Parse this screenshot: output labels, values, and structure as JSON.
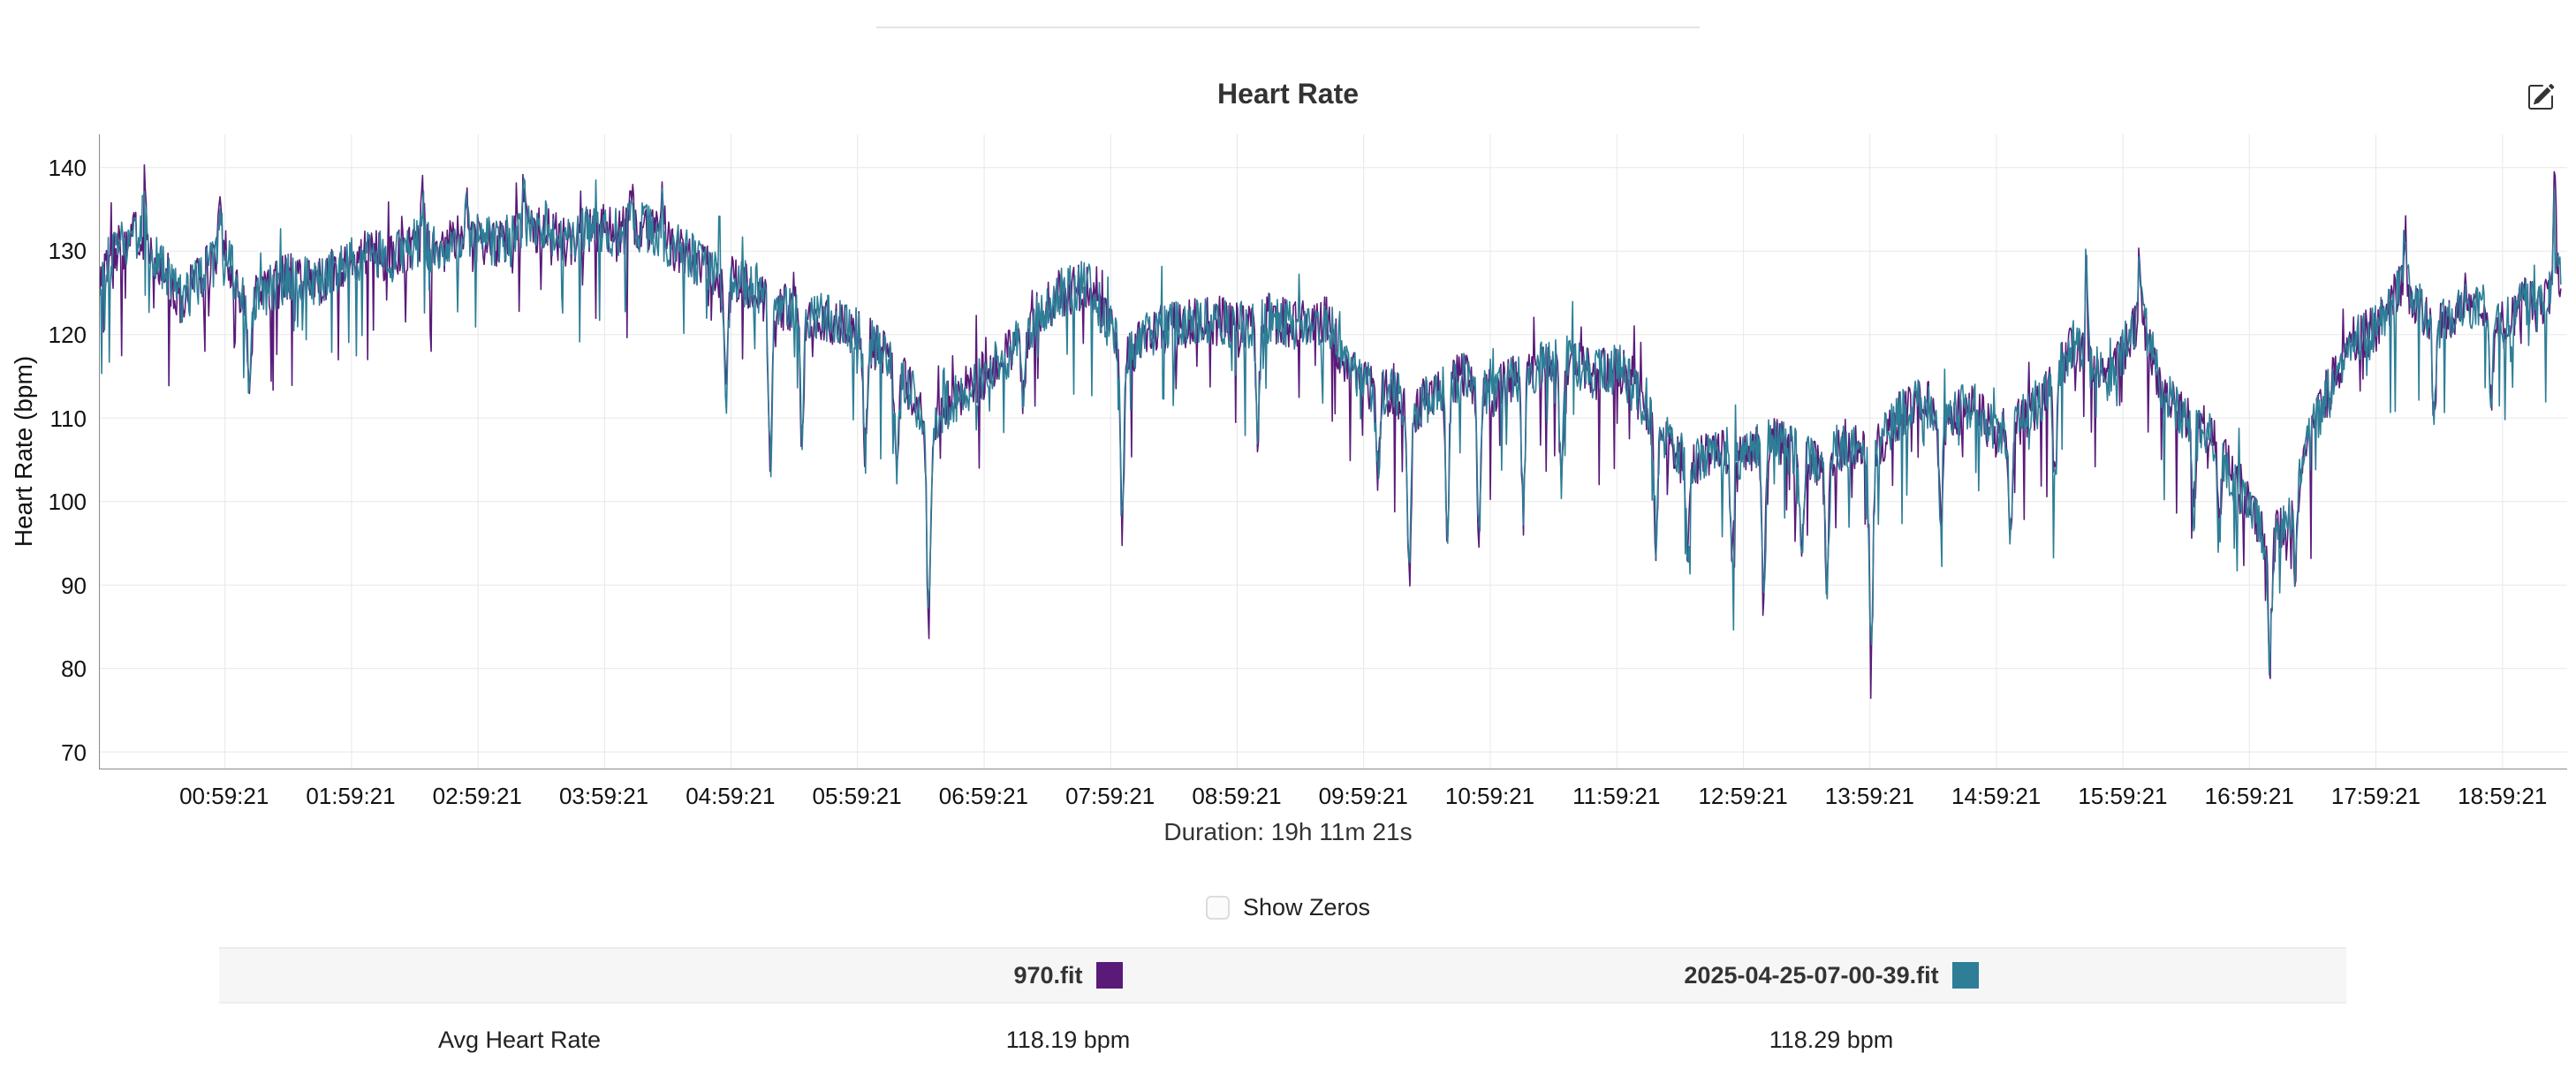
{
  "header": {
    "title": "Heart Rate"
  },
  "controls": {
    "show_zeros_label": "Show Zeros",
    "show_zeros_checked": false
  },
  "footer_table": {
    "row_label": "Avg Heart Rate",
    "columns": [
      {
        "name": "970.fit",
        "color": "#5a1a78",
        "avg": "118.19 bpm"
      },
      {
        "name": "2025-04-25-07-00-39.fit",
        "color": "#2d7e96",
        "avg": "118.29 bpm"
      }
    ]
  },
  "chart_data": {
    "type": "line",
    "title": "Heart Rate",
    "ylabel": "Heart Rate (bpm)",
    "xlabel_caption": "Duration: 19h 11m 21s",
    "ylim": [
      68,
      144
    ],
    "yticks": [
      70,
      80,
      90,
      100,
      110,
      120,
      130,
      140
    ],
    "xtick_labels": [
      "00:59:21",
      "01:59:21",
      "02:59:21",
      "03:59:21",
      "04:59:21",
      "05:59:21",
      "06:59:21",
      "07:59:21",
      "08:59:21",
      "09:59:21",
      "10:59:21",
      "11:59:21",
      "12:59:21",
      "13:59:21",
      "14:59:21",
      "15:59:21",
      "16:59:21",
      "17:59:21",
      "18:59:21"
    ],
    "first_tick_hour": 0.989,
    "hours_span": 19.5,
    "draw_end_hour": 19.45,
    "grid": true,
    "legend_position": "bottom-table",
    "noise_band_bpm": 3,
    "series": [
      {
        "name": "970.fit",
        "color": "#5a1a78",
        "avg_bpm": 118.19
      },
      {
        "name": "2025-04-25-07-00-39.fit",
        "color": "#2d7e96",
        "avg_bpm": 118.29
      }
    ],
    "trend_anchors_hour_bpm": [
      [
        0,
        126
      ],
      [
        0.1,
        130
      ],
      [
        0.3,
        132
      ],
      [
        0.5,
        128
      ],
      [
        0.65,
        124
      ],
      [
        0.8,
        127
      ],
      [
        1,
        130
      ],
      [
        1.15,
        123
      ],
      [
        1.3,
        125
      ],
      [
        1.5,
        127
      ],
      [
        1.7,
        126
      ],
      [
        1.9,
        128
      ],
      [
        2.1,
        130
      ],
      [
        2.3,
        129
      ],
      [
        2.5,
        131
      ],
      [
        2.7,
        130
      ],
      [
        2.9,
        132
      ],
      [
        3.1,
        131
      ],
      [
        3.3,
        132
      ],
      [
        3.5,
        133
      ],
      [
        3.7,
        131
      ],
      [
        3.9,
        133
      ],
      [
        4.1,
        132
      ],
      [
        4.3,
        133
      ],
      [
        4.5,
        131
      ],
      [
        4.7,
        129
      ],
      [
        4.9,
        127
      ],
      [
        5.1,
        126
      ],
      [
        5.3,
        124
      ],
      [
        5.5,
        123
      ],
      [
        5.7,
        122
      ],
      [
        5.9,
        121
      ],
      [
        6.1,
        119
      ],
      [
        6.3,
        116
      ],
      [
        6.45,
        112
      ],
      [
        6.55,
        108
      ],
      [
        6.65,
        111
      ],
      [
        6.8,
        113
      ],
      [
        7,
        115
      ],
      [
        7.2,
        118
      ],
      [
        7.4,
        122
      ],
      [
        7.6,
        125
      ],
      [
        7.8,
        126
      ],
      [
        7.95,
        122
      ],
      [
        8.1,
        117
      ],
      [
        8.25,
        120
      ],
      [
        8.5,
        121
      ],
      [
        8.75,
        122
      ],
      [
        9,
        121
      ],
      [
        9.25,
        122
      ],
      [
        9.5,
        121
      ],
      [
        9.7,
        122
      ],
      [
        9.85,
        116
      ],
      [
        10,
        114
      ],
      [
        10.2,
        113
      ],
      [
        10.4,
        111
      ],
      [
        10.6,
        114
      ],
      [
        10.8,
        115
      ],
      [
        11,
        113
      ],
      [
        11.2,
        115
      ],
      [
        11.4,
        116
      ],
      [
        11.6,
        117
      ],
      [
        11.8,
        115
      ],
      [
        12,
        116
      ],
      [
        12.2,
        112
      ],
      [
        12.4,
        107
      ],
      [
        12.6,
        105
      ],
      [
        12.8,
        106
      ],
      [
        13,
        105
      ],
      [
        13.2,
        108
      ],
      [
        13.4,
        106
      ],
      [
        13.6,
        105
      ],
      [
        13.8,
        107
      ],
      [
        14,
        105
      ],
      [
        14.2,
        110
      ],
      [
        14.4,
        112
      ],
      [
        14.6,
        110
      ],
      [
        14.8,
        112
      ],
      [
        15,
        108
      ],
      [
        15.2,
        110
      ],
      [
        15.4,
        113
      ],
      [
        15.6,
        119
      ],
      [
        15.75,
        116
      ],
      [
        15.9,
        115
      ],
      [
        16.05,
        120
      ],
      [
        16.15,
        122
      ],
      [
        16.3,
        113
      ],
      [
        16.5,
        110
      ],
      [
        16.7,
        108
      ],
      [
        16.85,
        103
      ],
      [
        17,
        99
      ],
      [
        17.15,
        95
      ],
      [
        17.3,
        98
      ],
      [
        17.45,
        107
      ],
      [
        17.6,
        113
      ],
      [
        17.8,
        119
      ],
      [
        18,
        121
      ],
      [
        18.2,
        126
      ],
      [
        18.35,
        123
      ],
      [
        18.5,
        121
      ],
      [
        18.65,
        123
      ],
      [
        18.8,
        124
      ],
      [
        19,
        121
      ],
      [
        19.15,
        124
      ],
      [
        19.3,
        123
      ],
      [
        19.45,
        127
      ]
    ],
    "dip_events_hour_bpm": [
      [
        1.18,
        115
      ],
      [
        4.95,
        112
      ],
      [
        5.3,
        104
      ],
      [
        5.55,
        107
      ],
      [
        6.05,
        106
      ],
      [
        6.3,
        104
      ],
      [
        6.55,
        86
      ],
      [
        7.3,
        112
      ],
      [
        8.08,
        97
      ],
      [
        9.15,
        108
      ],
      [
        10.1,
        103
      ],
      [
        10.35,
        91
      ],
      [
        10.65,
        97
      ],
      [
        10.9,
        96
      ],
      [
        11.25,
        100
      ],
      [
        11.55,
        103
      ],
      [
        12.3,
        95
      ],
      [
        12.55,
        93
      ],
      [
        12.9,
        92
      ],
      [
        13.15,
        87
      ],
      [
        13.45,
        94
      ],
      [
        13.65,
        90
      ],
      [
        14,
        83
      ],
      [
        14.55,
        98
      ],
      [
        15.1,
        97
      ],
      [
        15.45,
        102
      ],
      [
        16.55,
        99
      ],
      [
        16.75,
        97
      ],
      [
        17.15,
        81
      ],
      [
        17.35,
        92
      ],
      [
        18.45,
        110
      ],
      [
        18.9,
        112
      ]
    ],
    "peak_events_hour_bpm": [
      [
        0.35,
        138
      ],
      [
        0.95,
        137
      ],
      [
        2.55,
        137
      ],
      [
        2.9,
        138
      ],
      [
        3.35,
        137
      ],
      [
        4.2,
        139
      ],
      [
        4.45,
        138
      ],
      [
        15.7,
        128
      ],
      [
        16.12,
        129
      ],
      [
        18.22,
        133
      ],
      [
        19.4,
        139
      ]
    ]
  }
}
